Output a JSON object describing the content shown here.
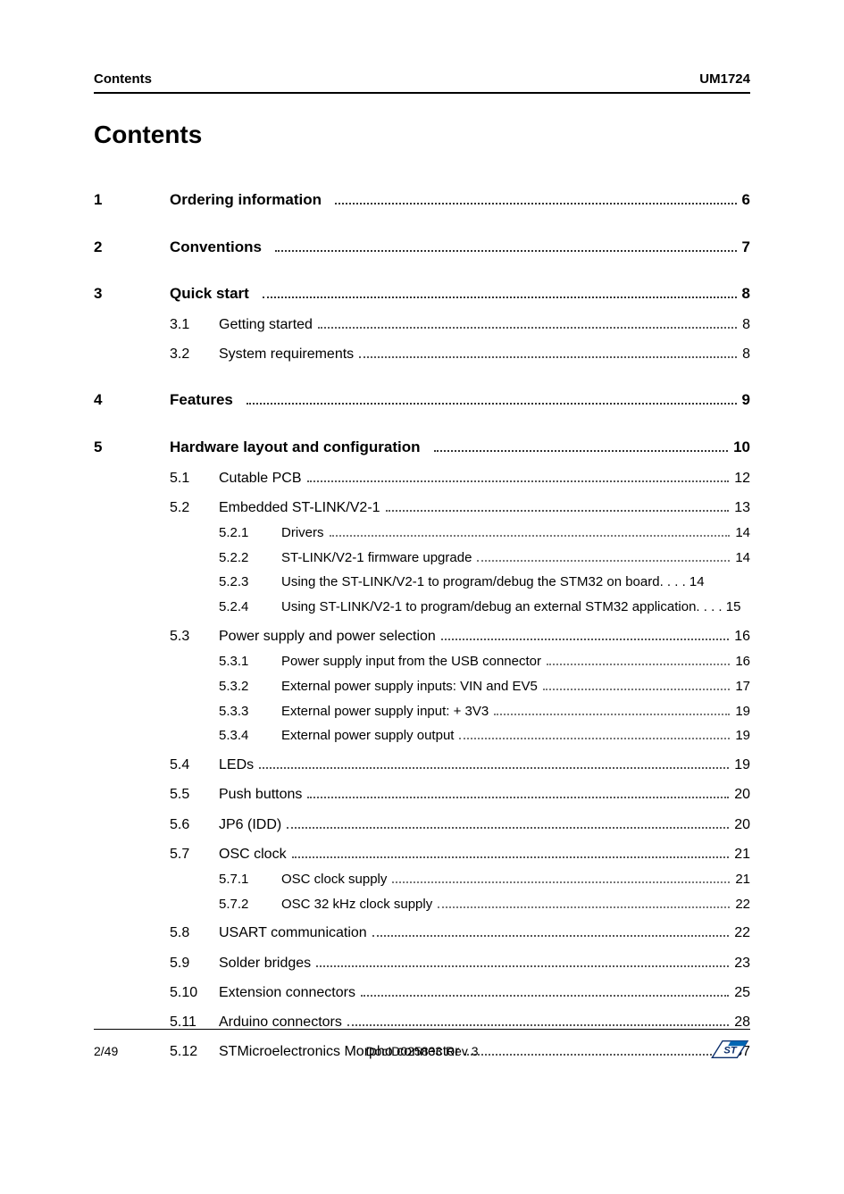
{
  "header": {
    "left": "Contents",
    "right": "UM1724"
  },
  "title": "Contents",
  "toc": [
    {
      "level": 1,
      "num": "1",
      "title": "Ordering information",
      "page": "6"
    },
    {
      "level": 1,
      "num": "2",
      "title": "Conventions",
      "page": "7"
    },
    {
      "level": 1,
      "num": "3",
      "title": "Quick start",
      "page": "8"
    },
    {
      "level": 2,
      "num": "3.1",
      "title": "Getting started",
      "page": "8"
    },
    {
      "level": 2,
      "num": "3.2",
      "title": "System requirements",
      "page": "8"
    },
    {
      "level": 1,
      "num": "4",
      "title": "Features",
      "page": "9"
    },
    {
      "level": 1,
      "num": "5",
      "title": "Hardware layout and configuration",
      "page": "10"
    },
    {
      "level": 2,
      "num": "5.1",
      "title": "Cutable PCB",
      "page": "12"
    },
    {
      "level": 2,
      "num": "5.2",
      "title": "Embedded ST-LINK/V2-1",
      "page": "13"
    },
    {
      "level": 3,
      "num": "5.2.1",
      "title": "Drivers",
      "page": "14"
    },
    {
      "level": 3,
      "num": "5.2.2",
      "title": "ST-LINK/V2-1 firmware upgrade",
      "page": "14"
    },
    {
      "level": 3,
      "num": "5.2.3",
      "title": "Using the ST-LINK/V2-1 to program/debug the STM32 on board",
      "page": "14",
      "nodots": true
    },
    {
      "level": 3,
      "num": "5.2.4",
      "title": "Using ST-LINK/V2-1 to program/debug an external STM32 application",
      "page": "15",
      "nodots": true
    },
    {
      "level": 2,
      "num": "5.3",
      "title": "Power supply and power selection",
      "page": "16"
    },
    {
      "level": 3,
      "num": "5.3.1",
      "title": "Power supply input from the USB connector",
      "page": "16"
    },
    {
      "level": 3,
      "num": "5.3.2",
      "title": "External power supply inputs: VIN and EV5",
      "page": "17"
    },
    {
      "level": 3,
      "num": "5.3.3",
      "title": "External power supply input: + 3V3",
      "page": "19"
    },
    {
      "level": 3,
      "num": "5.3.4",
      "title": "External power supply output",
      "page": "19"
    },
    {
      "level": 2,
      "num": "5.4",
      "title": "LEDs",
      "page": "19"
    },
    {
      "level": 2,
      "num": "5.5",
      "title": "Push buttons",
      "page": "20"
    },
    {
      "level": 2,
      "num": "5.6",
      "title": "JP6 (IDD)",
      "page": "20"
    },
    {
      "level": 2,
      "num": "5.7",
      "title": "OSC clock",
      "page": "21"
    },
    {
      "level": 3,
      "num": "5.7.1",
      "title": "OSC clock supply",
      "page": "21"
    },
    {
      "level": 3,
      "num": "5.7.2",
      "title": "OSC 32 kHz clock supply",
      "page": "22"
    },
    {
      "level": 2,
      "num": "5.8",
      "title": "USART communication",
      "page": "22"
    },
    {
      "level": 2,
      "num": "5.9",
      "title": "Solder bridges",
      "page": "23"
    },
    {
      "level": 2,
      "num": "5.10",
      "title": "Extension connectors",
      "page": "25"
    },
    {
      "level": 2,
      "num": "5.11",
      "title": "Arduino connectors",
      "page": "28"
    },
    {
      "level": 2,
      "num": "5.12",
      "title": "STMicroelectronics Morpho connector",
      "page": "37"
    }
  ],
  "footer": {
    "page_label": "2/49",
    "doc_id": "DocID025833 Rev 3",
    "logo_colors": {
      "bg": "#ffffff",
      "accent": "#0066b3",
      "text": "#0b2e6b"
    }
  },
  "styling": {
    "page_bg": "#ffffff",
    "body_bg": "#f0f0f0",
    "rule_color": "#000000",
    "dot_color": "#555555",
    "l1_fontsize": 17,
    "l2_fontsize": 16,
    "l3_fontsize": 15,
    "title_fontsize": 28,
    "header_fontsize": 15,
    "footer_fontsize": 14
  }
}
